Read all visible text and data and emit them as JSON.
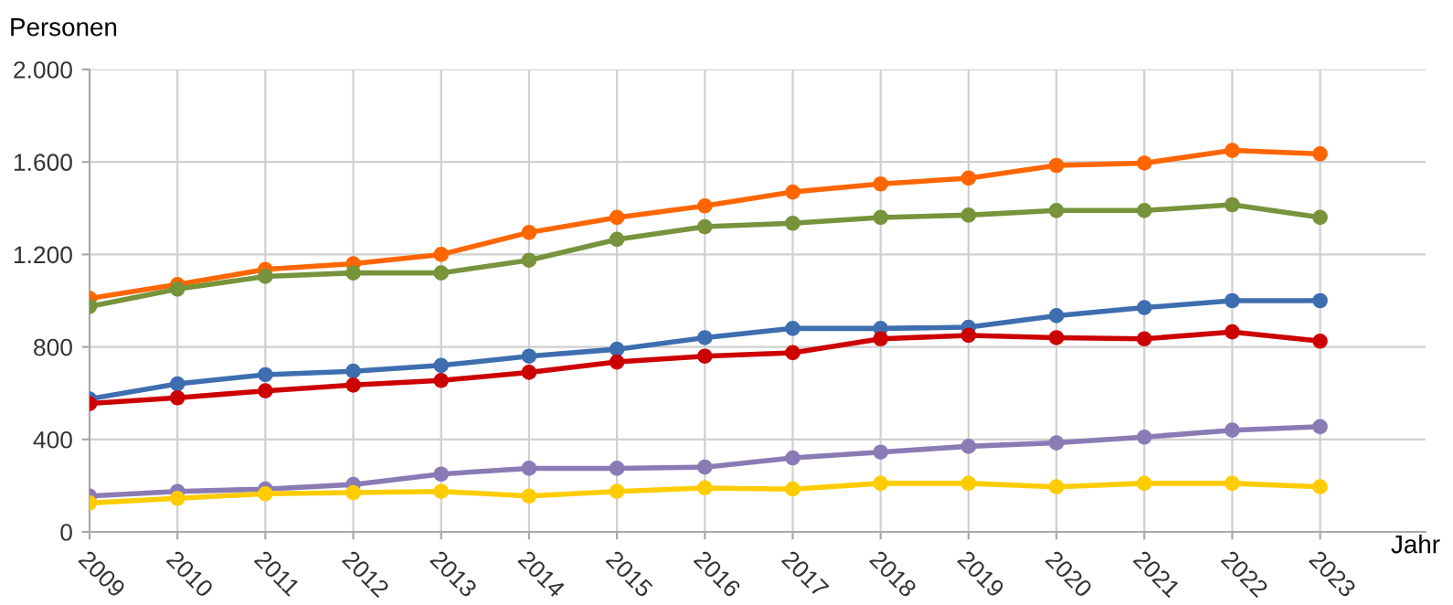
{
  "chart_data": {
    "type": "line",
    "ylabel": "Personen",
    "xlabel": "Jahr",
    "categories": [
      "2009",
      "2010",
      "2011",
      "2012",
      "2013",
      "2014",
      "2015",
      "2016",
      "2017",
      "2018",
      "2019",
      "2020",
      "2021",
      "2022",
      "2023"
    ],
    "series": [
      {
        "color": "#ff6600",
        "values": [
          1010,
          1070,
          1135,
          1160,
          1200,
          1295,
          1360,
          1410,
          1470,
          1505,
          1530,
          1585,
          1595,
          1650,
          1635
        ]
      },
      {
        "color": "#77933c",
        "values": [
          975,
          1050,
          1105,
          1120,
          1120,
          1175,
          1265,
          1320,
          1335,
          1360,
          1370,
          1390,
          1390,
          1415,
          1360
        ]
      },
      {
        "color": "#3f6eb0",
        "values": [
          575,
          640,
          680,
          695,
          720,
          760,
          790,
          840,
          880,
          880,
          885,
          935,
          970,
          1000,
          1000
        ]
      },
      {
        "color": "#cc0000",
        "values": [
          555,
          580,
          610,
          635,
          655,
          690,
          735,
          760,
          775,
          835,
          850,
          840,
          835,
          865,
          825
        ]
      },
      {
        "color": "#8a7bb5",
        "values": [
          155,
          175,
          185,
          205,
          250,
          275,
          275,
          280,
          320,
          345,
          370,
          385,
          410,
          440,
          455
        ]
      },
      {
        "color": "#ffcc00",
        "values": [
          125,
          145,
          165,
          170,
          175,
          155,
          175,
          190,
          185,
          210,
          210,
          195,
          210,
          210,
          195
        ]
      }
    ],
    "ylim": [
      0,
      2000
    ],
    "yticks": [
      0,
      400,
      800,
      {
        "value": 1200,
        "label": "1.200"
      },
      {
        "value": 1600,
        "label": "1.600"
      },
      {
        "value": 2000,
        "label": "2.000"
      }
    ],
    "grid": true,
    "marker": "circle",
    "line_style": "solid",
    "legend": false
  }
}
